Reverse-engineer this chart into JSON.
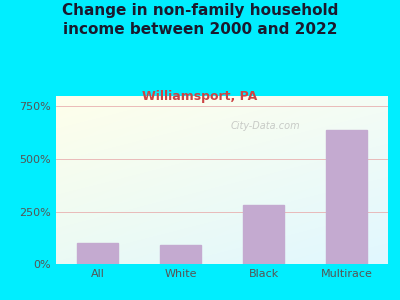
{
  "title": "Change in non-family household\nincome between 2000 and 2022",
  "subtitle": "Williamsport, PA",
  "categories": [
    "All",
    "White",
    "Black",
    "Multirace"
  ],
  "values": [
    100,
    92,
    280,
    640
  ],
  "bar_color": "#c4aad0",
  "title_fontsize": 11,
  "title_color": "#1a1a2e",
  "subtitle_fontsize": 9,
  "subtitle_color": "#cc4444",
  "tick_color": "#555555",
  "background_outer": "#00eeff",
  "ylim": [
    0,
    800
  ],
  "yticks": [
    0,
    250,
    500,
    750
  ],
  "ytick_labels": [
    "0%",
    "250%",
    "500%",
    "750%"
  ],
  "grid_color": "#e8b0b0",
  "watermark": "City-Data.com"
}
